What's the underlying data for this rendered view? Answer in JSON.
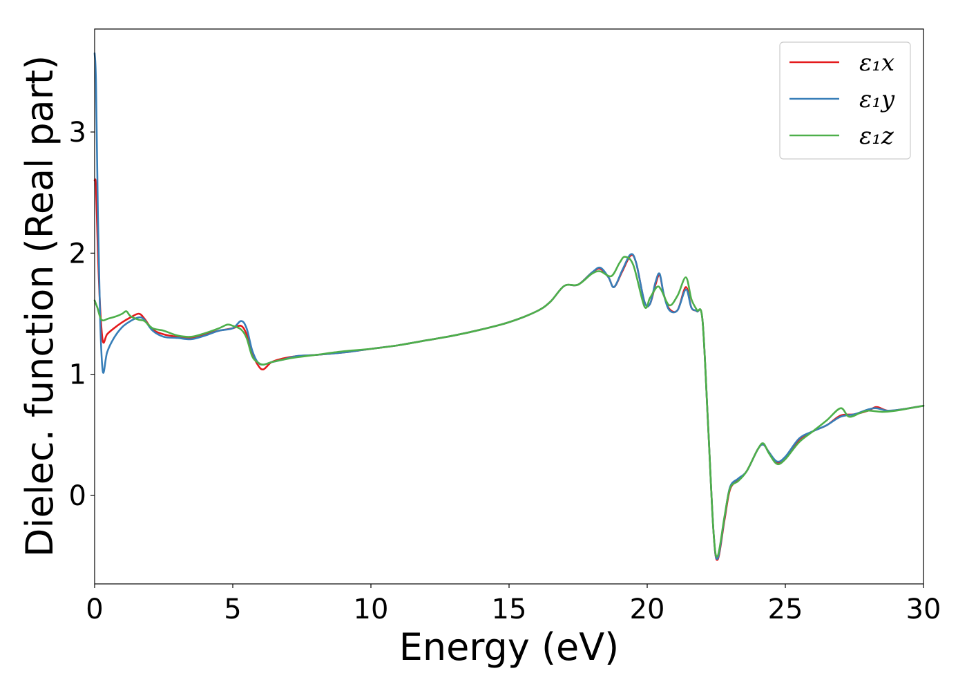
{
  "chart_data": {
    "type": "line",
    "title": "",
    "xlabel": "Energy (eV)",
    "ylabel": "Dielec. function (Real part)",
    "xlim": [
      0,
      30
    ],
    "ylim": [
      -0.73,
      3.85
    ],
    "xticks": [
      0,
      5,
      10,
      15,
      20,
      25,
      30
    ],
    "yticks": [
      0,
      1,
      2,
      3
    ],
    "grid": false,
    "legend_position": "top-right",
    "series": [
      {
        "name": "ε₁x",
        "color": "#e41a1c",
        "points": [
          [
            0.0,
            2.6
          ],
          [
            0.05,
            2.55
          ],
          [
            0.12,
            2.0
          ],
          [
            0.2,
            1.55
          ],
          [
            0.3,
            1.27
          ],
          [
            0.45,
            1.33
          ],
          [
            0.7,
            1.38
          ],
          [
            1.0,
            1.43
          ],
          [
            1.3,
            1.47
          ],
          [
            1.6,
            1.5
          ],
          [
            1.8,
            1.46
          ],
          [
            2.1,
            1.37
          ],
          [
            2.5,
            1.33
          ],
          [
            3.0,
            1.31
          ],
          [
            3.5,
            1.3
          ],
          [
            4.0,
            1.33
          ],
          [
            4.5,
            1.36
          ],
          [
            5.0,
            1.38
          ],
          [
            5.3,
            1.4
          ],
          [
            5.5,
            1.33
          ],
          [
            5.7,
            1.18
          ],
          [
            5.9,
            1.08
          ],
          [
            6.1,
            1.04
          ],
          [
            6.4,
            1.1
          ],
          [
            6.8,
            1.13
          ],
          [
            7.3,
            1.15
          ],
          [
            8.0,
            1.16
          ],
          [
            9.0,
            1.18
          ],
          [
            10.0,
            1.21
          ],
          [
            11.0,
            1.24
          ],
          [
            12.0,
            1.28
          ],
          [
            13.0,
            1.32
          ],
          [
            14.0,
            1.37
          ],
          [
            15.0,
            1.43
          ],
          [
            16.0,
            1.52
          ],
          [
            16.5,
            1.6
          ],
          [
            17.0,
            1.73
          ],
          [
            17.5,
            1.74
          ],
          [
            18.0,
            1.84
          ],
          [
            18.3,
            1.87
          ],
          [
            18.6,
            1.8
          ],
          [
            18.8,
            1.72
          ],
          [
            19.1,
            1.85
          ],
          [
            19.4,
            1.98
          ],
          [
            19.6,
            1.92
          ],
          [
            19.9,
            1.6
          ],
          [
            20.1,
            1.58
          ],
          [
            20.3,
            1.74
          ],
          [
            20.45,
            1.82
          ],
          [
            20.6,
            1.66
          ],
          [
            20.8,
            1.54
          ],
          [
            21.1,
            1.53
          ],
          [
            21.4,
            1.72
          ],
          [
            21.6,
            1.55
          ],
          [
            21.8,
            1.52
          ],
          [
            22.0,
            1.45
          ],
          [
            22.2,
            0.6
          ],
          [
            22.4,
            -0.3
          ],
          [
            22.55,
            -0.53
          ],
          [
            22.8,
            -0.2
          ],
          [
            23.0,
            0.05
          ],
          [
            23.3,
            0.13
          ],
          [
            23.6,
            0.2
          ],
          [
            24.0,
            0.38
          ],
          [
            24.2,
            0.42
          ],
          [
            24.4,
            0.36
          ],
          [
            24.7,
            0.27
          ],
          [
            25.0,
            0.3
          ],
          [
            25.5,
            0.46
          ],
          [
            26.0,
            0.53
          ],
          [
            26.5,
            0.58
          ],
          [
            27.0,
            0.66
          ],
          [
            27.5,
            0.67
          ],
          [
            28.0,
            0.7
          ],
          [
            28.3,
            0.73
          ],
          [
            28.7,
            0.7
          ],
          [
            29.2,
            0.71
          ],
          [
            30.0,
            0.74
          ]
        ]
      },
      {
        "name": "ε₁y",
        "color": "#377eb8",
        "points": [
          [
            0.0,
            3.65
          ],
          [
            0.05,
            3.4
          ],
          [
            0.12,
            2.3
          ],
          [
            0.2,
            1.45
          ],
          [
            0.3,
            1.02
          ],
          [
            0.45,
            1.18
          ],
          [
            0.7,
            1.3
          ],
          [
            1.0,
            1.39
          ],
          [
            1.3,
            1.44
          ],
          [
            1.6,
            1.47
          ],
          [
            1.8,
            1.45
          ],
          [
            2.1,
            1.36
          ],
          [
            2.5,
            1.31
          ],
          [
            3.0,
            1.3
          ],
          [
            3.5,
            1.29
          ],
          [
            4.0,
            1.32
          ],
          [
            4.5,
            1.36
          ],
          [
            5.0,
            1.38
          ],
          [
            5.3,
            1.44
          ],
          [
            5.5,
            1.38
          ],
          [
            5.7,
            1.2
          ],
          [
            5.9,
            1.1
          ],
          [
            6.1,
            1.08
          ],
          [
            6.4,
            1.1
          ],
          [
            6.8,
            1.12
          ],
          [
            7.3,
            1.15
          ],
          [
            8.0,
            1.16
          ],
          [
            9.0,
            1.18
          ],
          [
            10.0,
            1.21
          ],
          [
            11.0,
            1.24
          ],
          [
            12.0,
            1.28
          ],
          [
            13.0,
            1.32
          ],
          [
            14.0,
            1.37
          ],
          [
            15.0,
            1.43
          ],
          [
            16.0,
            1.52
          ],
          [
            16.5,
            1.6
          ],
          [
            17.0,
            1.73
          ],
          [
            17.5,
            1.74
          ],
          [
            18.0,
            1.84
          ],
          [
            18.3,
            1.88
          ],
          [
            18.6,
            1.8
          ],
          [
            18.8,
            1.72
          ],
          [
            19.1,
            1.86
          ],
          [
            19.4,
            1.99
          ],
          [
            19.6,
            1.92
          ],
          [
            19.9,
            1.6
          ],
          [
            20.1,
            1.58
          ],
          [
            20.3,
            1.76
          ],
          [
            20.45,
            1.83
          ],
          [
            20.6,
            1.66
          ],
          [
            20.8,
            1.53
          ],
          [
            21.1,
            1.53
          ],
          [
            21.4,
            1.7
          ],
          [
            21.6,
            1.55
          ],
          [
            21.8,
            1.52
          ],
          [
            22.0,
            1.45
          ],
          [
            22.2,
            0.6
          ],
          [
            22.4,
            -0.3
          ],
          [
            22.55,
            -0.52
          ],
          [
            22.8,
            -0.18
          ],
          [
            23.0,
            0.07
          ],
          [
            23.3,
            0.14
          ],
          [
            23.6,
            0.2
          ],
          [
            24.0,
            0.38
          ],
          [
            24.2,
            0.42
          ],
          [
            24.4,
            0.36
          ],
          [
            24.7,
            0.28
          ],
          [
            25.0,
            0.32
          ],
          [
            25.5,
            0.47
          ],
          [
            26.0,
            0.53
          ],
          [
            26.5,
            0.58
          ],
          [
            27.0,
            0.65
          ],
          [
            27.5,
            0.67
          ],
          [
            28.0,
            0.71
          ],
          [
            28.3,
            0.72
          ],
          [
            28.7,
            0.7
          ],
          [
            29.2,
            0.71
          ],
          [
            30.0,
            0.74
          ]
        ]
      },
      {
        "name": "ε₁z",
        "color": "#4daf4a",
        "points": [
          [
            0.0,
            1.61
          ],
          [
            0.1,
            1.55
          ],
          [
            0.25,
            1.45
          ],
          [
            0.5,
            1.46
          ],
          [
            0.8,
            1.48
          ],
          [
            1.0,
            1.5
          ],
          [
            1.15,
            1.52
          ],
          [
            1.3,
            1.48
          ],
          [
            1.6,
            1.45
          ],
          [
            1.8,
            1.44
          ],
          [
            2.1,
            1.38
          ],
          [
            2.5,
            1.36
          ],
          [
            3.0,
            1.32
          ],
          [
            3.5,
            1.31
          ],
          [
            4.0,
            1.34
          ],
          [
            4.5,
            1.38
          ],
          [
            4.8,
            1.41
          ],
          [
            5.0,
            1.4
          ],
          [
            5.3,
            1.37
          ],
          [
            5.5,
            1.3
          ],
          [
            5.7,
            1.15
          ],
          [
            5.9,
            1.1
          ],
          [
            6.1,
            1.08
          ],
          [
            6.4,
            1.1
          ],
          [
            6.8,
            1.12
          ],
          [
            7.3,
            1.14
          ],
          [
            8.0,
            1.16
          ],
          [
            9.0,
            1.19
          ],
          [
            10.0,
            1.21
          ],
          [
            11.0,
            1.24
          ],
          [
            12.0,
            1.28
          ],
          [
            13.0,
            1.32
          ],
          [
            14.0,
            1.37
          ],
          [
            15.0,
            1.43
          ],
          [
            16.0,
            1.52
          ],
          [
            16.5,
            1.6
          ],
          [
            17.0,
            1.73
          ],
          [
            17.5,
            1.74
          ],
          [
            18.0,
            1.83
          ],
          [
            18.3,
            1.85
          ],
          [
            18.7,
            1.81
          ],
          [
            19.0,
            1.92
          ],
          [
            19.2,
            1.97
          ],
          [
            19.5,
            1.9
          ],
          [
            19.9,
            1.56
          ],
          [
            20.1,
            1.63
          ],
          [
            20.35,
            1.72
          ],
          [
            20.5,
            1.7
          ],
          [
            20.8,
            1.57
          ],
          [
            21.1,
            1.65
          ],
          [
            21.4,
            1.8
          ],
          [
            21.6,
            1.62
          ],
          [
            21.8,
            1.53
          ],
          [
            22.0,
            1.45
          ],
          [
            22.2,
            0.6
          ],
          [
            22.4,
            -0.3
          ],
          [
            22.55,
            -0.5
          ],
          [
            22.8,
            -0.17
          ],
          [
            23.0,
            0.06
          ],
          [
            23.3,
            0.12
          ],
          [
            23.6,
            0.2
          ],
          [
            24.0,
            0.38
          ],
          [
            24.2,
            0.43
          ],
          [
            24.4,
            0.35
          ],
          [
            24.7,
            0.26
          ],
          [
            25.0,
            0.3
          ],
          [
            25.5,
            0.44
          ],
          [
            26.0,
            0.53
          ],
          [
            26.5,
            0.62
          ],
          [
            27.0,
            0.72
          ],
          [
            27.3,
            0.65
          ],
          [
            27.7,
            0.68
          ],
          [
            28.0,
            0.7
          ],
          [
            28.5,
            0.69
          ],
          [
            29.0,
            0.7
          ],
          [
            29.5,
            0.72
          ],
          [
            30.0,
            0.74
          ]
        ]
      }
    ]
  }
}
